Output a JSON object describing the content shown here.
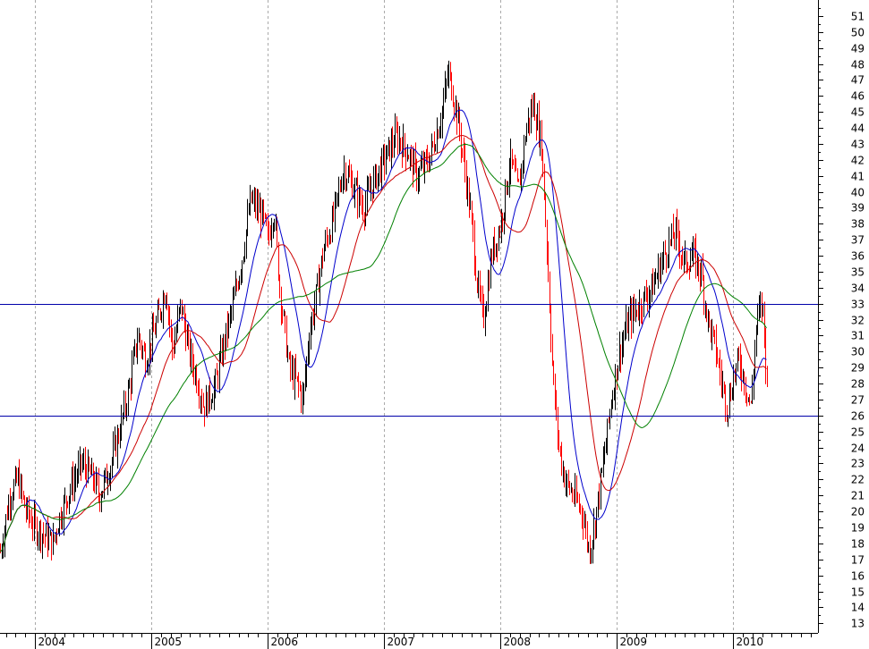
{
  "chart_data": {
    "type": "candlestick",
    "title": "",
    "xlabel": "",
    "ylabel": "",
    "ylim": [
      12.4,
      52
    ],
    "y_ticks": [
      13,
      14,
      15,
      16,
      17,
      18,
      19,
      20,
      21,
      22,
      23,
      24,
      25,
      26,
      27,
      28,
      29,
      30,
      31,
      32,
      33,
      34,
      35,
      36,
      37,
      38,
      39,
      40,
      41,
      42,
      43,
      44,
      45,
      46,
      47,
      48,
      49,
      50,
      51
    ],
    "y_axis_side": "right",
    "x_range": [
      2003.7,
      2010.73
    ],
    "years": [
      "2004",
      "2005",
      "2006",
      "2007",
      "2008",
      "2009",
      "2010"
    ],
    "grid": {
      "vertical": true,
      "horizontal": false,
      "style": "dotted"
    },
    "horizontal_lines": [
      33.0,
      26.0
    ],
    "colors": {
      "up_bar": "#000000",
      "down_bar": "#ff0000",
      "ma_fast": "#0000cc",
      "ma_mid": "#cc0000",
      "ma_slow": "#008000",
      "horizontal_line": "#0000aa",
      "grid": "#aaaaaa"
    },
    "moving_averages": [
      {
        "window": 4,
        "color": "#0000cc"
      },
      {
        "window": 8,
        "color": "#cc0000"
      },
      {
        "window": 14,
        "color": "#008000"
      }
    ],
    "price_path": [
      [
        2003.7,
        17.5
      ],
      [
        2003.78,
        21.0
      ],
      [
        2003.85,
        22.0
      ],
      [
        2003.92,
        20.0
      ],
      [
        2004.0,
        19.0
      ],
      [
        2004.08,
        18.5
      ],
      [
        2004.15,
        18.0
      ],
      [
        2004.2,
        19.5
      ],
      [
        2004.3,
        21.5
      ],
      [
        2004.4,
        23.0
      ],
      [
        2004.5,
        22.0
      ],
      [
        2004.55,
        21.0
      ],
      [
        2004.65,
        23.0
      ],
      [
        2004.72,
        25.0
      ],
      [
        2004.8,
        27.5
      ],
      [
        2004.88,
        31.0
      ],
      [
        2004.95,
        29.5
      ],
      [
        2005.05,
        32.0
      ],
      [
        2005.12,
        34.0
      ],
      [
        2005.18,
        30.0
      ],
      [
        2005.25,
        33.0
      ],
      [
        2005.32,
        30.0
      ],
      [
        2005.4,
        28.0
      ],
      [
        2005.45,
        26.5
      ],
      [
        2005.55,
        28.0
      ],
      [
        2005.62,
        30.5
      ],
      [
        2005.7,
        33.0
      ],
      [
        2005.78,
        36.0
      ],
      [
        2005.85,
        39.5
      ],
      [
        2005.95,
        38.5
      ],
      [
        2006.0,
        37.0
      ],
      [
        2006.05,
        39.0
      ],
      [
        2006.1,
        34.0
      ],
      [
        2006.18,
        29.0
      ],
      [
        2006.25,
        28.0
      ],
      [
        2006.3,
        27.0
      ],
      [
        2006.35,
        31.0
      ],
      [
        2006.4,
        33.0
      ],
      [
        2006.48,
        36.5
      ],
      [
        2006.55,
        38.0
      ],
      [
        2006.65,
        41.5
      ],
      [
        2006.75,
        40.0
      ],
      [
        2006.82,
        39.0
      ],
      [
        2006.9,
        40.5
      ],
      [
        2007.0,
        42.0
      ],
      [
        2007.1,
        43.5
      ],
      [
        2007.2,
        42.5
      ],
      [
        2007.28,
        41.0
      ],
      [
        2007.38,
        42.0
      ],
      [
        2007.48,
        44.5
      ],
      [
        2007.55,
        47.5
      ],
      [
        2007.62,
        45.0
      ],
      [
        2007.68,
        42.0
      ],
      [
        2007.75,
        38.0
      ],
      [
        2007.8,
        34.0
      ],
      [
        2007.85,
        32.0
      ],
      [
        2007.92,
        36.0
      ],
      [
        2008.0,
        38.0
      ],
      [
        2008.08,
        42.0
      ],
      [
        2008.15,
        40.0
      ],
      [
        2008.22,
        44.0
      ],
      [
        2008.28,
        45.5
      ],
      [
        2008.35,
        43.0
      ],
      [
        2008.4,
        36.0
      ],
      [
        2008.45,
        28.0
      ],
      [
        2008.5,
        24.0
      ],
      [
        2008.55,
        22.0
      ],
      [
        2008.62,
        21.0
      ],
      [
        2008.7,
        20.0
      ],
      [
        2008.76,
        17.5
      ],
      [
        2008.8,
        19.0
      ],
      [
        2008.88,
        23.0
      ],
      [
        2008.95,
        27.0
      ],
      [
        2009.02,
        30.0
      ],
      [
        2009.1,
        32.0
      ],
      [
        2009.2,
        33.0
      ],
      [
        2009.3,
        34.0
      ],
      [
        2009.4,
        36.0
      ],
      [
        2009.5,
        37.5
      ],
      [
        2009.58,
        35.5
      ],
      [
        2009.65,
        36.0
      ],
      [
        2009.72,
        35.0
      ],
      [
        2009.78,
        32.0
      ],
      [
        2009.85,
        30.0
      ],
      [
        2009.9,
        28.0
      ],
      [
        2009.95,
        26.5
      ],
      [
        2010.0,
        28.5
      ],
      [
        2010.05,
        29.5
      ],
      [
        2010.1,
        28.0
      ],
      [
        2010.15,
        26.5
      ],
      [
        2010.2,
        32.0
      ],
      [
        2010.25,
        33.0
      ],
      [
        2010.29,
        27.5
      ]
    ]
  }
}
